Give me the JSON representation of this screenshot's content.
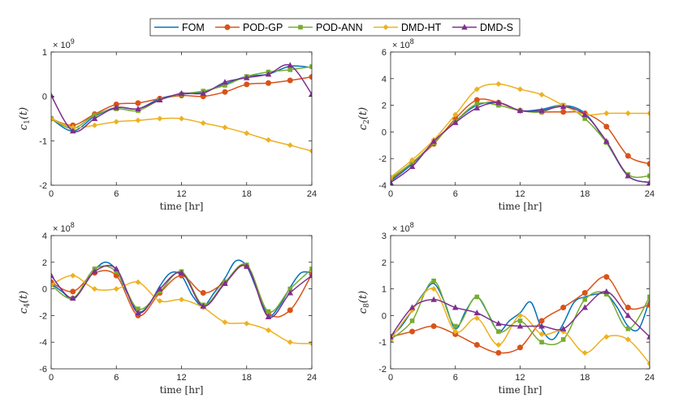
{
  "legend": [
    {
      "name": "FOM",
      "color": "#0072BD",
      "marker": "none"
    },
    {
      "name": "POD-GP",
      "color": "#D95319",
      "marker": "circle"
    },
    {
      "name": "POD-ANN",
      "color": "#77AC30",
      "marker": "square"
    },
    {
      "name": "DMD-HT",
      "color": "#EDB120",
      "marker": "diamond"
    },
    {
      "name": "DMD-S",
      "color": "#7E2F8E",
      "marker": "triangle"
    }
  ],
  "chart_data": [
    {
      "type": "line",
      "ylabel_base": "c",
      "ylabel_sub": "1",
      "ylabel_arg": "(t)",
      "xlabel": "time [hr]",
      "exponent_base": "× 10",
      "exponent_power": "9",
      "xlim": [
        0,
        24
      ],
      "ylim": [
        -2,
        1
      ],
      "xticks": [
        0,
        6,
        12,
        18,
        24
      ],
      "yticks": [
        -2,
        -1,
        0,
        1
      ],
      "series": [
        {
          "name": "FOM",
          "x": [
            0,
            2,
            4,
            6,
            8,
            10,
            12,
            14,
            16,
            18,
            20,
            22,
            24
          ],
          "y": [
            -0.5,
            -0.78,
            -0.45,
            -0.25,
            -0.28,
            -0.05,
            0.05,
            0.1,
            0.28,
            0.45,
            0.5,
            0.68,
            0.65
          ]
        },
        {
          "name": "POD-GP",
          "x": [
            0,
            2,
            4,
            6,
            8,
            10,
            12,
            14,
            16,
            18,
            20,
            22,
            24
          ],
          "y": [
            -0.5,
            -0.65,
            -0.4,
            -0.18,
            -0.15,
            -0.05,
            0.02,
            0.0,
            0.1,
            0.27,
            0.3,
            0.36,
            0.44
          ]
        },
        {
          "name": "POD-ANN",
          "x": [
            0,
            2,
            4,
            6,
            8,
            10,
            12,
            14,
            16,
            18,
            20,
            22,
            24
          ],
          "y": [
            -0.5,
            -0.72,
            -0.42,
            -0.28,
            -0.32,
            -0.08,
            0.05,
            0.12,
            0.25,
            0.45,
            0.55,
            0.6,
            0.67
          ]
        },
        {
          "name": "DMD-HT",
          "x": [
            0,
            2,
            4,
            6,
            8,
            10,
            12,
            14,
            16,
            18,
            20,
            22,
            24
          ],
          "y": [
            -0.5,
            -0.7,
            -0.65,
            -0.57,
            -0.54,
            -0.5,
            -0.5,
            -0.6,
            -0.7,
            -0.83,
            -0.98,
            -1.1,
            -1.23
          ]
        },
        {
          "name": "DMD-S",
          "x": [
            0,
            2,
            4,
            6,
            8,
            10,
            12,
            14,
            16,
            18,
            20,
            22,
            24
          ],
          "y": [
            0.02,
            -0.78,
            -0.5,
            -0.25,
            -0.28,
            -0.08,
            0.07,
            0.07,
            0.32,
            0.42,
            0.5,
            0.7,
            0.05
          ]
        }
      ]
    },
    {
      "type": "line",
      "ylabel_base": "c",
      "ylabel_sub": "2",
      "ylabel_arg": "(t)",
      "xlabel": "time [hr]",
      "exponent_base": "× 10",
      "exponent_power": "8",
      "xlim": [
        0,
        24
      ],
      "ylim": [
        -4,
        6
      ],
      "xticks": [
        0,
        6,
        12,
        18,
        24
      ],
      "yticks": [
        -4,
        -2,
        0,
        2,
        4,
        6
      ],
      "series": [
        {
          "name": "FOM",
          "x": [
            0,
            2,
            4,
            6,
            8,
            10,
            12,
            14,
            16,
            18,
            20,
            22,
            24
          ],
          "y": [
            -3.7,
            -2.4,
            -0.8,
            0.8,
            2.0,
            2.2,
            1.6,
            1.7,
            2.0,
            1.4,
            -0.8,
            -3.3,
            -3.8
          ]
        },
        {
          "name": "POD-GP",
          "x": [
            0,
            2,
            4,
            6,
            8,
            10,
            12,
            14,
            16,
            18,
            20,
            22,
            24
          ],
          "y": [
            -3.6,
            -2.3,
            -0.9,
            1.0,
            2.4,
            2.2,
            1.6,
            1.5,
            1.5,
            1.4,
            0.4,
            -1.8,
            -2.4
          ]
        },
        {
          "name": "POD-ANN",
          "x": [
            0,
            2,
            4,
            6,
            8,
            10,
            12,
            14,
            16,
            18,
            20,
            22,
            24
          ],
          "y": [
            -3.5,
            -2.3,
            -0.8,
            0.8,
            2.1,
            2.0,
            1.6,
            1.5,
            2.0,
            1.0,
            -0.8,
            -3.2,
            -3.3
          ]
        },
        {
          "name": "DMD-HT",
          "x": [
            0,
            2,
            4,
            6,
            8,
            10,
            12,
            14,
            16,
            18,
            20,
            22,
            24
          ],
          "y": [
            -3.4,
            -2.1,
            -0.6,
            1.3,
            3.2,
            3.6,
            3.2,
            2.8,
            2.0,
            1.3,
            1.4,
            1.4,
            1.4
          ]
        },
        {
          "name": "DMD-S",
          "x": [
            0,
            2,
            4,
            6,
            8,
            10,
            12,
            14,
            16,
            18,
            20,
            22,
            24
          ],
          "y": [
            -3.8,
            -2.6,
            -0.7,
            0.7,
            1.8,
            2.2,
            1.6,
            1.6,
            1.9,
            1.3,
            -0.7,
            -3.3,
            -3.8
          ]
        }
      ]
    },
    {
      "type": "line",
      "ylabel_base": "c",
      "ylabel_sub": "4",
      "ylabel_arg": "(t)",
      "xlabel": "time [hr]",
      "exponent_base": "× 10",
      "exponent_power": "8",
      "xlim": [
        0,
        24
      ],
      "ylim": [
        -6,
        4
      ],
      "xticks": [
        0,
        6,
        12,
        18,
        24
      ],
      "yticks": [
        -6,
        -4,
        -2,
        0,
        2,
        4
      ],
      "series": [
        {
          "name": "FOM",
          "x": [
            0,
            1,
            2,
            3,
            4,
            5,
            6,
            7,
            8,
            9,
            10,
            11,
            12,
            13,
            14,
            15,
            16,
            17,
            18,
            19,
            20,
            21,
            22,
            23,
            24
          ],
          "y": [
            0.4,
            -0.2,
            -0.8,
            0.2,
            1.4,
            2.0,
            1.4,
            -0.3,
            -1.7,
            -1.2,
            0.2,
            1.2,
            1.0,
            -0.5,
            -1.3,
            -0.3,
            0.8,
            2.1,
            1.7,
            -0.2,
            -2.0,
            -1.3,
            0.1,
            1.2,
            1.2
          ]
        },
        {
          "name": "POD-GP",
          "x": [
            0,
            2,
            4,
            6,
            8,
            10,
            12,
            14,
            16,
            18,
            20,
            22,
            24
          ],
          "y": [
            0.5,
            -0.2,
            1.2,
            1.0,
            -2.0,
            -0.3,
            1.0,
            -0.3,
            0.5,
            1.7,
            -1.8,
            -1.6,
            1.1
          ]
        },
        {
          "name": "POD-ANN",
          "x": [
            0,
            2,
            4,
            6,
            8,
            10,
            12,
            14,
            16,
            18,
            20,
            22,
            24
          ],
          "y": [
            0.3,
            -0.7,
            1.5,
            1.3,
            -1.5,
            -0.2,
            1.3,
            -1.2,
            0.5,
            1.8,
            -1.7,
            0.0,
            1.5
          ]
        },
        {
          "name": "DMD-HT",
          "x": [
            0,
            2,
            4,
            6,
            8,
            10,
            12,
            14,
            16,
            18,
            20,
            22,
            24
          ],
          "y": [
            0.3,
            1.0,
            0.0,
            0.0,
            0.5,
            -0.9,
            -0.8,
            -1.4,
            -2.5,
            -2.6,
            -3.1,
            -4.0,
            -4.1
          ]
        },
        {
          "name": "DMD-S",
          "x": [
            0,
            2,
            4,
            6,
            8,
            10,
            12,
            14,
            16,
            18,
            20,
            22,
            24
          ],
          "y": [
            1.0,
            -0.7,
            1.3,
            1.5,
            -1.8,
            0.0,
            1.2,
            -1.3,
            0.4,
            1.7,
            -2.1,
            -0.3,
            1.0
          ]
        }
      ]
    },
    {
      "type": "line",
      "ylabel_base": "c",
      "ylabel_sub": "8",
      "ylabel_arg": "(t)",
      "xlabel": "time [hr]",
      "exponent_base": "× 10",
      "exponent_power": "8",
      "xlim": [
        0,
        24
      ],
      "ylim": [
        -2,
        3
      ],
      "xticks": [
        0,
        6,
        12,
        18,
        24
      ],
      "yticks": [
        -2,
        -1,
        0,
        1,
        2,
        3
      ],
      "series": [
        {
          "name": "FOM",
          "x": [
            0,
            1,
            2,
            3,
            4,
            5,
            6,
            7,
            8,
            9,
            10,
            11,
            12,
            13,
            14,
            15,
            16,
            17,
            18,
            19,
            20,
            21,
            22,
            23,
            24
          ],
          "y": [
            -0.8,
            -0.4,
            0.2,
            0.8,
            1.2,
            0.5,
            -0.5,
            0.2,
            0.7,
            0.1,
            -0.6,
            -0.2,
            0.1,
            0.5,
            -0.5,
            -0.9,
            -0.3,
            0.5,
            0.7,
            0.8,
            0.8,
            0.3,
            -0.4,
            -0.5,
            0.6
          ]
        },
        {
          "name": "POD-GP",
          "x": [
            0,
            2,
            4,
            6,
            8,
            10,
            12,
            14,
            16,
            18,
            20,
            22,
            24
          ],
          "y": [
            -0.8,
            -0.6,
            -0.4,
            -0.7,
            -1.1,
            -1.4,
            -1.2,
            -0.2,
            0.3,
            0.85,
            1.45,
            0.3,
            0.4
          ]
        },
        {
          "name": "POD-ANN",
          "x": [
            0,
            2,
            4,
            6,
            8,
            10,
            12,
            14,
            16,
            18,
            20,
            22,
            24
          ],
          "y": [
            -0.9,
            -0.2,
            1.3,
            -0.4,
            0.7,
            -0.6,
            -0.2,
            -1.0,
            -0.9,
            0.6,
            0.8,
            -0.5,
            0.7
          ]
        },
        {
          "name": "DMD-HT",
          "x": [
            0,
            2,
            4,
            6,
            8,
            10,
            12,
            14,
            16,
            18,
            20,
            22,
            24
          ],
          "y": [
            -0.9,
            0.2,
            1.0,
            -0.6,
            -0.1,
            -1.1,
            0.0,
            -0.7,
            -0.6,
            -1.4,
            -0.8,
            -0.9,
            -1.8
          ]
        },
        {
          "name": "DMD-S",
          "x": [
            0,
            2,
            4,
            6,
            8,
            10,
            12,
            14,
            16,
            18,
            20,
            22,
            24
          ],
          "y": [
            -0.8,
            0.3,
            0.6,
            0.3,
            0.1,
            -0.3,
            -0.4,
            -0.4,
            -0.5,
            0.3,
            0.9,
            0.0,
            -0.8
          ]
        }
      ]
    }
  ]
}
